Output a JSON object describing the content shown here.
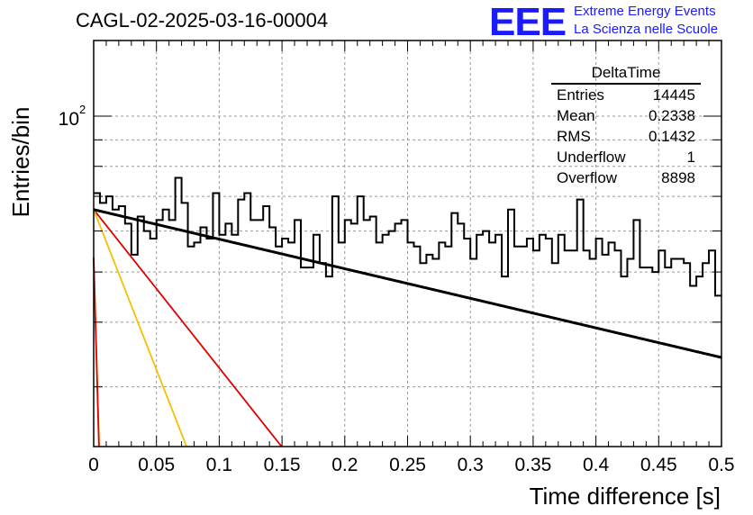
{
  "header": {
    "title": "CAGL-02-2025-03-16-00004",
    "logo_text": "EEE",
    "brand_line1": "Extreme Energy Events",
    "brand_line2": "La Scienza nelle Scuole"
  },
  "stats_box": {
    "name": "DeltaTime",
    "rows": [
      {
        "label": "Entries",
        "value": "14445"
      },
      {
        "label": "Mean",
        "value": "0.2338"
      },
      {
        "label": "RMS",
        "value": "0.1432"
      },
      {
        "label": "Underflow",
        "value": "1"
      },
      {
        "label": "Overflow",
        "value": "8898"
      }
    ]
  },
  "chart_data": {
    "type": "histogram",
    "xlabel": "Time difference [s]",
    "ylabel": "Entries/bin",
    "xlim": [
      0,
      0.5
    ],
    "ylim": [
      23,
      140
    ],
    "yscale": "log",
    "grid": true,
    "x_ticks": [
      0,
      0.05,
      0.1,
      0.15,
      0.2,
      0.25,
      0.3,
      0.35,
      0.4,
      0.45,
      0.5
    ],
    "x_tick_labels": [
      "0",
      "0.05",
      "0.1",
      "0.15",
      "0.2",
      "0.25",
      "0.3",
      "0.35",
      "0.4",
      "0.45",
      "0.5"
    ],
    "y_tick_label": {
      "value": 100,
      "label": "10^2"
    },
    "bin_width": 0.005,
    "histogram_values": [
      71,
      68,
      70,
      66,
      67,
      62,
      54,
      64,
      60,
      58,
      63,
      66,
      63,
      76,
      68,
      56,
      57,
      61,
      58,
      71,
      59,
      62,
      59,
      69,
      71,
      63,
      63,
      67,
      61,
      56,
      58,
      57,
      63,
      51,
      51,
      59,
      52,
      49,
      70,
      57,
      63,
      62,
      70,
      63,
      64,
      57,
      59,
      60,
      62,
      63,
      57,
      56,
      52,
      54,
      53,
      57,
      56,
      65,
      62,
      58,
      53,
      59,
      60,
      57,
      59,
      49,
      66,
      56,
      56,
      58,
      55,
      59,
      58,
      52,
      59,
      55,
      55,
      69,
      55,
      53,
      58,
      54,
      57,
      55,
      49,
      53,
      63,
      51,
      51,
      50,
      55,
      51,
      53,
      53,
      52,
      47,
      49,
      52,
      55,
      45
    ],
    "fit_total": {
      "color": "#000000",
      "y0": 66,
      "tau": 0.76
    },
    "components": [
      {
        "color": "#e00000",
        "y0": 66,
        "tau": 0.142
      },
      {
        "color": "#f5c000",
        "y0": 66,
        "tau": 0.0702
      },
      {
        "color": "#f5c000",
        "y0": 53.3,
        "tau": 0.0052
      },
      {
        "color": "#e00000",
        "y0": 53.3,
        "tau": 0.005
      }
    ]
  }
}
